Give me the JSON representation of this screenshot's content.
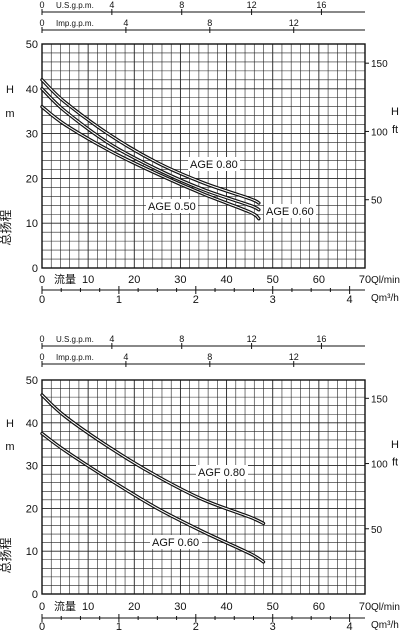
{
  "charts": [
    {
      "type": "line",
      "ylabel_left": "H",
      "ylabel_left_unit": "m",
      "ylabel_right": "H",
      "ylabel_right_unit": "ft",
      "ylabel_vertical": "总扬程",
      "xlabel_flow": "流量",
      "xlabel_ql": "Ql/min",
      "xlabel_qm": "Qm³/h",
      "usgpm_label": "U.S.g.p.m.",
      "impgpm_label": "Imp.g.p.m.",
      "xlim": [
        0,
        70
      ],
      "ylim": [
        0,
        50
      ],
      "x_ticks": [
        "0",
        "10",
        "20",
        "30",
        "40",
        "50",
        "60",
        "70"
      ],
      "y_ticks": [
        "0",
        "10",
        "20",
        "30",
        "40",
        "50"
      ],
      "ft_ticks": [
        "50",
        "100",
        "150"
      ],
      "usgpm_ticks": [
        "0",
        "4",
        "8",
        "12",
        "16"
      ],
      "impgpm_ticks": [
        "0",
        "4",
        "8",
        "12"
      ],
      "qm_ticks": [
        "0",
        "1",
        "2",
        "3",
        "4"
      ],
      "series": [
        {
          "name": "AGE 0.80",
          "x": [
            0,
            5,
            15,
            25,
            35,
            45,
            47
          ],
          "y": [
            42,
            37,
            29.5,
            23.5,
            19,
            15.5,
            14.5
          ]
        },
        {
          "name": "AGE 0.50",
          "x": [
            0,
            5,
            15,
            25,
            35,
            45,
            47
          ],
          "y": [
            40,
            35,
            27.5,
            22,
            17.5,
            14,
            13
          ]
        },
        {
          "name": "AGE 0.60",
          "x": [
            0,
            5,
            15,
            25,
            35,
            45,
            47
          ],
          "y": [
            36,
            32,
            26,
            21,
            16.5,
            12.5,
            11
          ]
        }
      ]
    },
    {
      "type": "line",
      "ylabel_left": "H",
      "ylabel_left_unit": "m",
      "ylabel_right": "H",
      "ylabel_right_unit": "ft",
      "ylabel_vertical": "总扬程",
      "xlabel_flow": "流量",
      "xlabel_ql": "Ql/min",
      "xlabel_qm": "Qm³/h",
      "usgpm_label": "U.S.g.p.m.",
      "impgpm_label": "Imp.g.p.m.",
      "xlim": [
        0,
        70
      ],
      "ylim": [
        0,
        50
      ],
      "x_ticks": [
        "0",
        "10",
        "20",
        "30",
        "40",
        "50",
        "60",
        "70"
      ],
      "y_ticks": [
        "0",
        "10",
        "20",
        "30",
        "40",
        "50"
      ],
      "ft_ticks": [
        "50",
        "100",
        "150"
      ],
      "usgpm_ticks": [
        "0",
        "4",
        "8",
        "12",
        "16"
      ],
      "impgpm_ticks": [
        "0",
        "4",
        "8",
        "12"
      ],
      "qm_ticks": [
        "0",
        "1",
        "2",
        "3",
        "4"
      ],
      "series": [
        {
          "name": "AGF 0.80",
          "x": [
            0,
            5,
            15,
            25,
            35,
            45,
            48
          ],
          "y": [
            46.5,
            41.5,
            34,
            27.5,
            22,
            18,
            16.5
          ]
        },
        {
          "name": "AGF 0.60",
          "x": [
            0,
            5,
            15,
            25,
            35,
            45,
            48
          ],
          "y": [
            37.5,
            33.5,
            26.5,
            20,
            14.5,
            9.5,
            7.5
          ]
        }
      ]
    }
  ],
  "chart_data": [
    {
      "type": "line",
      "xlabel": "Ql/min",
      "ylabel": "H m",
      "xlim": [
        0,
        70
      ],
      "ylim": [
        0,
        50
      ],
      "series": [
        {
          "name": "AGE 0.80",
          "x": [
            0,
            5,
            15,
            25,
            35,
            45,
            47
          ],
          "y": [
            42,
            37,
            29.5,
            23.5,
            19,
            15.5,
            14.5
          ]
        },
        {
          "name": "AGE 0.50",
          "x": [
            0,
            5,
            15,
            25,
            35,
            45,
            47
          ],
          "y": [
            40,
            35,
            27.5,
            22,
            17.5,
            14,
            13
          ]
        },
        {
          "name": "AGE 0.60",
          "x": [
            0,
            5,
            15,
            25,
            35,
            45,
            47
          ],
          "y": [
            36,
            32,
            26,
            21,
            16.5,
            12.5,
            11
          ]
        }
      ]
    },
    {
      "type": "line",
      "xlabel": "Ql/min",
      "ylabel": "H m",
      "xlim": [
        0,
        70
      ],
      "ylim": [
        0,
        50
      ],
      "series": [
        {
          "name": "AGF 0.80",
          "x": [
            0,
            5,
            15,
            25,
            35,
            45,
            48
          ],
          "y": [
            46.5,
            41.5,
            34,
            27.5,
            22,
            18,
            16.5
          ]
        },
        {
          "name": "AGF 0.60",
          "x": [
            0,
            5,
            15,
            25,
            35,
            45,
            48
          ],
          "y": [
            37.5,
            33.5,
            26.5,
            20,
            14.5,
            9.5,
            7.5
          ]
        }
      ]
    }
  ]
}
